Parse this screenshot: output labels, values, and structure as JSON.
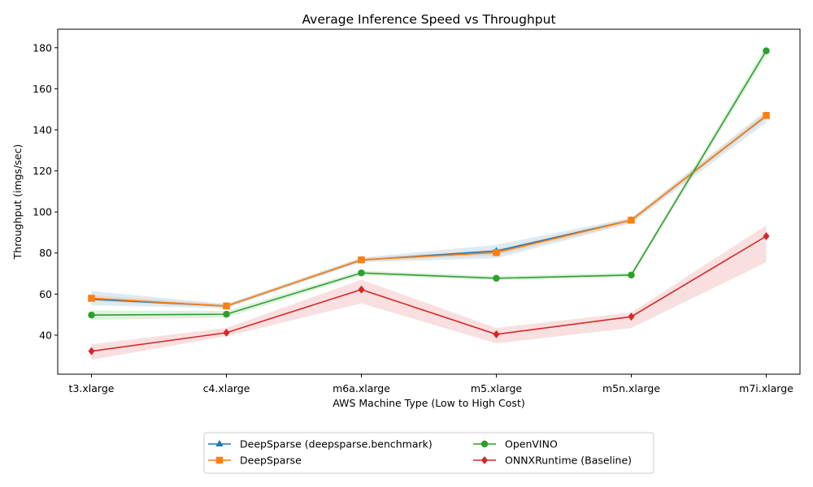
{
  "chart_data": {
    "type": "line",
    "title": "Average Inference Speed vs Throughput",
    "xlabel": "AWS Machine Type (Low to High Cost)",
    "ylabel": "Throughput (imgs/sec)",
    "categories": [
      "t3.xlarge",
      "c4.xlarge",
      "m6a.xlarge",
      "m5.xlarge",
      "m5n.xlarge",
      "m7i.xlarge"
    ],
    "ylim": [
      21,
      189
    ],
    "yticks": [
      40,
      60,
      80,
      100,
      120,
      140,
      160,
      180
    ],
    "grid": false,
    "legend_position": "bottom-center (below plot)",
    "legend_columns": 2,
    "series": [
      {
        "name": "DeepSparse (deepsparse.benchmark)",
        "color": "#1f77b4",
        "marker": "triangle",
        "values": [
          57.5,
          54.2,
          76.6,
          81.0,
          96.0,
          146.8
        ],
        "band_lower": [
          54.5,
          53.2,
          75.5,
          77.5,
          94.5,
          143.5
        ],
        "band_upper": [
          61.5,
          55.2,
          77.8,
          84.0,
          97.2,
          149.5
        ]
      },
      {
        "name": "DeepSparse",
        "color": "#ff7f0e",
        "marker": "square",
        "values": [
          58.0,
          54.2,
          76.7,
          80.2,
          96.0,
          147.0
        ],
        "band_lower": [
          56.5,
          53.4,
          76.0,
          78.8,
          94.8,
          145.5
        ],
        "band_upper": [
          59.5,
          55.0,
          77.5,
          81.8,
          97.0,
          148.5
        ]
      },
      {
        "name": "OpenVINO",
        "color": "#2ca02c",
        "marker": "circle",
        "values": [
          49.8,
          50.2,
          70.3,
          67.7,
          69.3,
          178.5
        ],
        "band_lower": [
          47.5,
          48.5,
          69.2,
          66.8,
          68.3,
          176.0
        ],
        "band_upper": [
          52.0,
          51.8,
          71.5,
          68.8,
          70.5,
          181.0
        ]
      },
      {
        "name": "ONNXRuntime (Baseline)",
        "color": "#d62728",
        "marker": "diamond",
        "values": [
          32.2,
          41.2,
          62.2,
          40.4,
          49.0,
          88.2
        ],
        "band_lower": [
          28.0,
          39.5,
          55.5,
          36.0,
          43.5,
          75.5
        ],
        "band_upper": [
          35.5,
          43.5,
          67.0,
          43.5,
          51.0,
          93.5
        ]
      }
    ]
  }
}
